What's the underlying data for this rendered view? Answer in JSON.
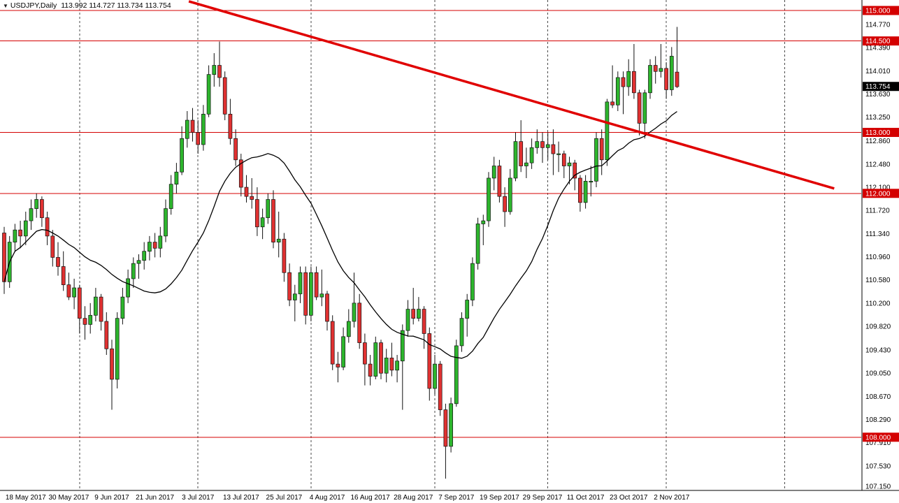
{
  "header": {
    "dropdown_icon": "▼",
    "title": "USDJPY,Daily",
    "ohlc": "113.992 114.727 113.734 113.754"
  },
  "chart_data": {
    "type": "candlestick",
    "symbol": "USDJPY",
    "timeframe": "Daily",
    "last_ohlc": {
      "open": 113.992,
      "high": 114.727,
      "low": 113.734,
      "close": 113.754
    },
    "x_labels": [
      "18 May 2017",
      "30 May 2017",
      "9 Jun 2017",
      "21 Jun 2017",
      "3 Jul 2017",
      "13 Jul 2017",
      "25 Jul 2017",
      "4 Aug 2017",
      "16 Aug 2017",
      "28 Aug 2017",
      "7 Sep 2017",
      "19 Sep 2017",
      "29 Sep 2017",
      "11 Oct 2017",
      "23 Oct 2017",
      "2 Nov 2017"
    ],
    "x_label_start_index": 4,
    "x_label_step": 8,
    "y_axis": {
      "top_price": 115.0,
      "bottom_price": 107.15,
      "ticks": [
        114.77,
        114.39,
        114.01,
        113.63,
        113.25,
        112.86,
        112.48,
        112.1,
        111.72,
        111.34,
        110.96,
        110.58,
        110.2,
        109.82,
        109.43,
        109.05,
        108.67,
        108.29,
        107.91,
        107.53,
        107.15
      ],
      "current_price": 113.754
    },
    "levels": {
      "values": [
        115.0,
        114.5,
        113.0,
        112.0,
        108.0
      ],
      "color": "#d40000"
    },
    "trendline": {
      "i1": 34.3,
      "p1": 115.15,
      "i2": 154.2,
      "p2": 112.08,
      "color": "#e00000",
      "width": 3.5
    },
    "ma": {
      "period": 20,
      "color": "#000000"
    },
    "month_separator_indices": [
      14,
      36,
      57,
      80,
      101,
      123,
      145
    ],
    "colors": {
      "up": "#2db52d",
      "down": "#e03131",
      "wick": "#111111",
      "grid": "#4a4a4a",
      "current_badge": "#000000"
    },
    "candles": [
      [
        111.35,
        111.45,
        110.35,
        110.55
      ],
      [
        110.55,
        111.3,
        110.45,
        111.2
      ],
      [
        111.2,
        111.5,
        111.05,
        111.4
      ],
      [
        111.4,
        111.55,
        111.1,
        111.3
      ],
      [
        111.3,
        111.7,
        111.15,
        111.55
      ],
      [
        111.55,
        111.9,
        111.4,
        111.75
      ],
      [
        111.75,
        112.0,
        111.6,
        111.9
      ],
      [
        111.9,
        111.95,
        111.45,
        111.6
      ],
      [
        111.6,
        111.7,
        111.15,
        111.3
      ],
      [
        111.3,
        111.4,
        110.8,
        110.95
      ],
      [
        110.95,
        111.2,
        110.65,
        110.8
      ],
      [
        110.8,
        111.05,
        110.4,
        110.5
      ],
      [
        110.5,
        110.7,
        110.25,
        110.3
      ],
      [
        110.3,
        110.6,
        110.1,
        110.45
      ],
      [
        110.45,
        110.5,
        109.7,
        109.95
      ],
      [
        109.95,
        110.15,
        109.6,
        109.85
      ],
      [
        109.85,
        110.2,
        109.7,
        110.0
      ],
      [
        110.0,
        110.45,
        109.9,
        110.3
      ],
      [
        110.3,
        110.35,
        109.75,
        109.9
      ],
      [
        109.9,
        110.05,
        109.35,
        109.45
      ],
      [
        109.45,
        109.6,
        108.45,
        108.95
      ],
      [
        108.95,
        110.05,
        108.8,
        109.95
      ],
      [
        109.95,
        110.45,
        109.85,
        110.3
      ],
      [
        110.3,
        110.75,
        110.2,
        110.6
      ],
      [
        110.6,
        110.95,
        110.45,
        110.85
      ],
      [
        110.85,
        111.0,
        110.6,
        110.9
      ],
      [
        110.9,
        111.2,
        110.75,
        111.05
      ],
      [
        111.05,
        111.3,
        110.9,
        111.2
      ],
      [
        111.2,
        111.35,
        110.95,
        111.1
      ],
      [
        111.1,
        111.45,
        110.95,
        111.3
      ],
      [
        111.3,
        111.9,
        111.2,
        111.75
      ],
      [
        111.75,
        112.3,
        111.65,
        112.15
      ],
      [
        112.15,
        112.5,
        112.0,
        112.35
      ],
      [
        112.35,
        113.1,
        112.3,
        112.9
      ],
      [
        112.9,
        113.35,
        112.75,
        113.2
      ],
      [
        113.2,
        113.4,
        112.85,
        113.0
      ],
      [
        113.0,
        113.2,
        112.65,
        112.8
      ],
      [
        112.8,
        113.45,
        112.7,
        113.3
      ],
      [
        113.3,
        114.1,
        113.25,
        113.95
      ],
      [
        113.95,
        114.3,
        113.75,
        114.1
      ],
      [
        114.1,
        114.49,
        113.75,
        113.9
      ],
      [
        113.9,
        114.0,
        113.2,
        113.3
      ],
      [
        113.3,
        113.55,
        112.8,
        112.9
      ],
      [
        112.9,
        113.05,
        112.45,
        112.55
      ],
      [
        112.55,
        112.65,
        111.95,
        112.1
      ],
      [
        112.1,
        112.3,
        111.85,
        111.95
      ],
      [
        111.95,
        112.25,
        111.75,
        111.9
      ],
      [
        111.9,
        112.1,
        111.3,
        111.45
      ],
      [
        111.45,
        111.75,
        111.25,
        111.6
      ],
      [
        111.6,
        112.0,
        111.5,
        111.9
      ],
      [
        111.9,
        112.05,
        111.1,
        111.2
      ],
      [
        111.2,
        111.7,
        110.95,
        111.25
      ],
      [
        111.25,
        111.35,
        110.55,
        110.7
      ],
      [
        110.7,
        110.85,
        110.15,
        110.25
      ],
      [
        110.25,
        110.5,
        109.9,
        110.35
      ],
      [
        110.35,
        110.8,
        110.2,
        110.7
      ],
      [
        110.7,
        110.8,
        109.85,
        110.0
      ],
      [
        110.0,
        110.8,
        109.9,
        110.7
      ],
      [
        110.7,
        110.8,
        110.25,
        110.3
      ],
      [
        110.3,
        110.75,
        110.15,
        110.35
      ],
      [
        110.35,
        110.4,
        109.75,
        109.9
      ],
      [
        109.9,
        110.0,
        109.1,
        109.2
      ],
      [
        109.2,
        109.4,
        108.9,
        109.15
      ],
      [
        109.15,
        109.8,
        109.1,
        109.65
      ],
      [
        109.65,
        110.1,
        109.55,
        109.9
      ],
      [
        109.9,
        110.7,
        109.8,
        110.2
      ],
      [
        110.2,
        110.35,
        109.45,
        109.55
      ],
      [
        109.55,
        109.7,
        108.85,
        109.2
      ],
      [
        109.2,
        109.35,
        108.85,
        109.0
      ],
      [
        109.0,
        109.65,
        108.95,
        109.55
      ],
      [
        109.55,
        109.6,
        108.95,
        109.05
      ],
      [
        109.05,
        109.45,
        108.9,
        109.3
      ],
      [
        109.3,
        109.55,
        109.0,
        109.1
      ],
      [
        109.1,
        109.35,
        108.9,
        109.25
      ],
      [
        109.25,
        109.85,
        108.45,
        109.75
      ],
      [
        109.75,
        110.25,
        109.65,
        110.1
      ],
      [
        110.1,
        110.45,
        109.85,
        109.95
      ],
      [
        109.95,
        110.3,
        109.9,
        110.1
      ],
      [
        110.1,
        110.15,
        109.45,
        109.7
      ],
      [
        109.7,
        109.8,
        108.6,
        108.8
      ],
      [
        108.8,
        109.35,
        108.7,
        109.2
      ],
      [
        109.2,
        109.25,
        108.35,
        108.45
      ],
      [
        108.45,
        108.55,
        107.32,
        107.85
      ],
      [
        107.85,
        108.65,
        107.75,
        108.55
      ],
      [
        108.55,
        109.6,
        108.5,
        109.5
      ],
      [
        109.5,
        110.05,
        109.4,
        109.95
      ],
      [
        109.95,
        110.35,
        109.65,
        110.25
      ],
      [
        110.25,
        110.95,
        110.15,
        110.85
      ],
      [
        110.85,
        111.6,
        110.75,
        111.5
      ],
      [
        111.5,
        111.65,
        111.15,
        111.55
      ],
      [
        111.55,
        112.35,
        111.45,
        112.25
      ],
      [
        112.25,
        112.6,
        112.05,
        112.45
      ],
      [
        112.45,
        112.55,
        111.85,
        111.95
      ],
      [
        111.95,
        112.1,
        111.45,
        111.7
      ],
      [
        111.7,
        112.4,
        111.65,
        112.25
      ],
      [
        112.25,
        113.0,
        112.2,
        112.85
      ],
      [
        112.85,
        113.2,
        112.35,
        112.45
      ],
      [
        112.45,
        112.75,
        112.25,
        112.5
      ],
      [
        112.5,
        112.9,
        112.4,
        112.75
      ],
      [
        112.75,
        113.05,
        112.65,
        112.85
      ],
      [
        112.85,
        113.0,
        112.5,
        112.75
      ],
      [
        112.75,
        113.0,
        112.55,
        112.8
      ],
      [
        112.8,
        113.05,
        112.3,
        112.65
      ],
      [
        112.65,
        112.85,
        112.35,
        112.65
      ],
      [
        112.65,
        112.7,
        112.25,
        112.45
      ],
      [
        112.45,
        112.6,
        112.15,
        112.5
      ],
      [
        112.5,
        112.55,
        112.05,
        112.25
      ],
      [
        112.25,
        112.3,
        111.7,
        111.85
      ],
      [
        111.85,
        112.3,
        111.75,
        112.2
      ],
      [
        112.2,
        112.45,
        111.95,
        112.2
      ],
      [
        112.2,
        113.0,
        112.1,
        112.9
      ],
      [
        112.9,
        113.05,
        112.3,
        112.55
      ],
      [
        112.55,
        113.55,
        112.45,
        113.5
      ],
      [
        113.5,
        114.1,
        113.4,
        113.45
      ],
      [
        113.45,
        114.0,
        113.35,
        113.9
      ],
      [
        113.9,
        114.0,
        113.3,
        113.75
      ],
      [
        113.75,
        114.2,
        113.6,
        114.0
      ],
      [
        114.0,
        114.45,
        113.55,
        113.65
      ],
      [
        113.65,
        113.7,
        112.95,
        113.15
      ],
      [
        113.15,
        113.7,
        112.9,
        113.65
      ],
      [
        113.65,
        114.2,
        113.55,
        114.1
      ],
      [
        114.1,
        114.25,
        113.8,
        114.0
      ],
      [
        114.0,
        114.45,
        113.9,
        114.05
      ],
      [
        114.05,
        114.15,
        113.55,
        113.7
      ],
      [
        113.7,
        114.4,
        113.6,
        114.25
      ],
      [
        113.99,
        114.73,
        113.73,
        113.75
      ]
    ]
  }
}
